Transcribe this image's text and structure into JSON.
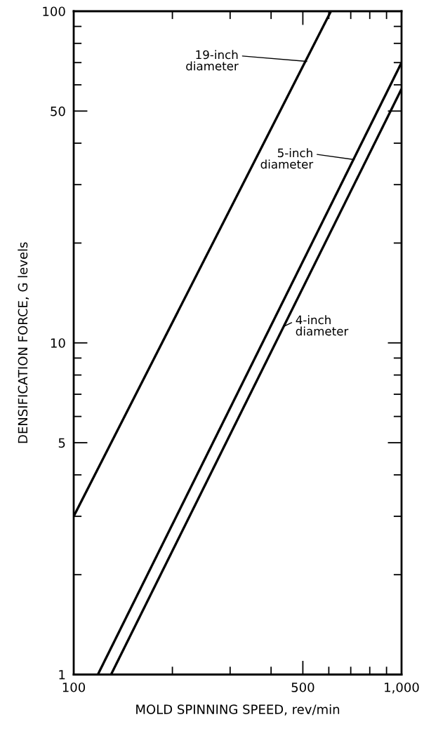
{
  "chart_data": {
    "type": "line",
    "xlabel": "MOLD SPINNING SPEED, rev/min",
    "ylabel": "DENSIFICATION FORCE, G levels",
    "log": "xy",
    "xlim": [
      100,
      1000
    ],
    "ylim": [
      1,
      100
    ],
    "xticks": [
      100,
      {
        "value": 200,
        "label": null
      },
      {
        "value": 300,
        "label": null
      },
      {
        "value": 400,
        "label": null
      },
      500,
      {
        "value": 600,
        "label": null
      },
      {
        "value": 700,
        "label": null
      },
      {
        "value": 800,
        "label": null
      },
      {
        "value": 900,
        "label": null
      },
      {
        "value": 1000,
        "label": "1,000"
      }
    ],
    "yticks": [
      1,
      {
        "value": 2,
        "label": null
      },
      {
        "value": 3,
        "label": null
      },
      {
        "value": 4,
        "label": null
      },
      5,
      {
        "value": 6,
        "label": null
      },
      {
        "value": 7,
        "label": null
      },
      {
        "value": 8,
        "label": null
      },
      {
        "value": 9,
        "label": null
      },
      10,
      {
        "value": 20,
        "label": null
      },
      {
        "value": 30,
        "label": null
      },
      {
        "value": 40,
        "label": null
      },
      50,
      {
        "value": 60,
        "label": null
      },
      {
        "value": 70,
        "label": null
      },
      {
        "value": 80,
        "label": null
      },
      {
        "value": 90,
        "label": null
      },
      100
    ],
    "grid": false,
    "legend": false,
    "marker": "none",
    "line_style": "solid",
    "series": [
      {
        "color": "#000000",
        "x": [
          100,
          609
        ],
        "values": [
          3.0,
          100
        ]
      },
      {
        "color": "#000000",
        "x": [
          118.5,
          1000
        ],
        "values": [
          1,
          70
        ]
      },
      {
        "color": "#000000",
        "x": [
          130,
          1000
        ],
        "values": [
          1,
          58.3
        ]
      }
    ],
    "annotations": [
      {
        "text": "19-inch\ndiameter",
        "x": 514,
        "y": 70.6
      },
      {
        "text": "5-inch\ndiameter",
        "x": 717,
        "y": 35.7
      },
      {
        "text": "4-inch\ndiameter",
        "x": 437,
        "y": 11.2
      }
    ]
  }
}
